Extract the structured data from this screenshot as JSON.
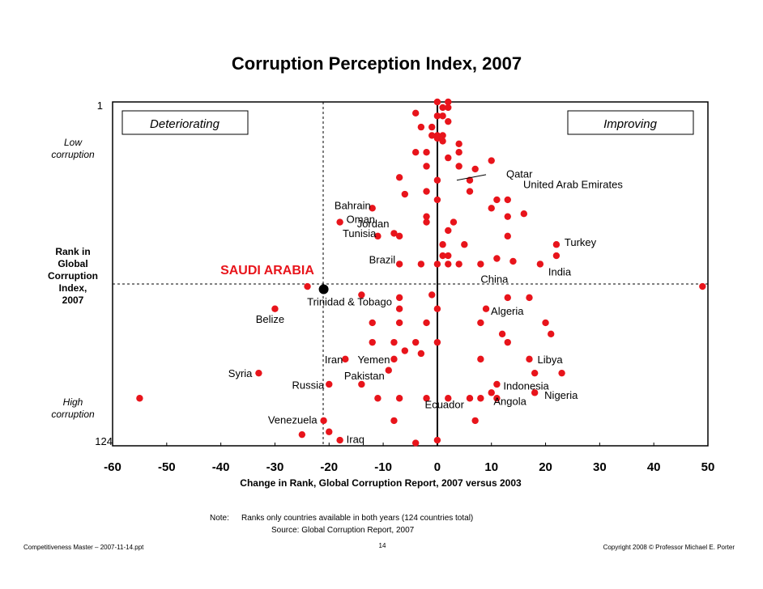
{
  "chart_data": {
    "type": "scatter",
    "title": "Corruption Perception Index, 2007",
    "xlabel": "Change in Rank, Global Corruption Report, 2007 versus 2003",
    "ylabel": "Rank in Global Corruption Index, 2007",
    "xlim": [
      -60,
      50
    ],
    "ylim": [
      124,
      1
    ],
    "x_ticks": [
      "-60",
      "-50",
      "-40",
      "-30",
      "-20",
      "-10",
      "0",
      "10",
      "20",
      "30",
      "40",
      "50"
    ],
    "y_top_label": "1",
    "y_bottom_label": "124",
    "y_top_desc": "Low corruption",
    "y_bottom_desc": "High corruption",
    "left_box": "Deteriorating",
    "right_box": "Improving",
    "highlight": {
      "name": "SAUDI ARABIA",
      "x": -21,
      "y": 68
    },
    "labels": [
      {
        "name": "Qatar",
        "x": 3,
        "y": 28
      },
      {
        "name": "United Arab Emirates",
        "x": 6,
        "y": 31
      },
      {
        "name": "Bahrain",
        "x": -12,
        "y": 39
      },
      {
        "name": "Oman",
        "x": -18,
        "y": 44
      },
      {
        "name": "Jordan",
        "x": -8,
        "y": 45
      },
      {
        "name": "Tunisia",
        "x": -11,
        "y": 49
      },
      {
        "name": "Turkey",
        "x": 22,
        "y": 52
      },
      {
        "name": "Brazil",
        "x": -7,
        "y": 61
      },
      {
        "name": "China",
        "x": 8,
        "y": 61
      },
      {
        "name": "India",
        "x": 19,
        "y": 61
      },
      {
        "name": "Trinidad & Tobago",
        "x": -24,
        "y": 68
      },
      {
        "name": "Belize",
        "x": -30,
        "y": 76
      },
      {
        "name": "Algeria",
        "x": 9,
        "y": 76
      },
      {
        "name": "Iran",
        "x": -17,
        "y": 93
      },
      {
        "name": "Yemen",
        "x": -8,
        "y": 93
      },
      {
        "name": "Libya",
        "x": 17,
        "y": 93
      },
      {
        "name": "Syria",
        "x": -33,
        "y": 98
      },
      {
        "name": "Pakistan",
        "x": -9,
        "y": 98
      },
      {
        "name": "Russia",
        "x": -20,
        "y": 103
      },
      {
        "name": "Indonesia",
        "x": 11,
        "y": 103
      },
      {
        "name": "Nigeria",
        "x": 18,
        "y": 106
      },
      {
        "name": "Angola",
        "x": 8,
        "y": 107
      },
      {
        "name": "Ecuador",
        "x": -2,
        "y": 107
      },
      {
        "name": "Venezuela",
        "x": -21,
        "y": 116
      },
      {
        "name": "Iraq",
        "x": -18,
        "y": 123
      }
    ],
    "points": [
      [
        -4,
        5
      ],
      [
        0,
        1
      ],
      [
        2,
        1
      ],
      [
        1,
        3
      ],
      [
        2,
        3
      ],
      [
        0,
        6
      ],
      [
        1,
        6
      ],
      [
        -3,
        10
      ],
      [
        -1,
        10
      ],
      [
        2,
        8
      ],
      [
        -1,
        13
      ],
      [
        0,
        13
      ],
      [
        1,
        13
      ],
      [
        0,
        14
      ],
      [
        1,
        15
      ],
      [
        4,
        16
      ],
      [
        -4,
        19
      ],
      [
        -2,
        19
      ],
      [
        4,
        19
      ],
      [
        2,
        21
      ],
      [
        -2,
        24
      ],
      [
        4,
        24
      ],
      [
        7,
        25
      ],
      [
        10,
        22
      ],
      [
        -7,
        28
      ],
      [
        0,
        29
      ],
      [
        6,
        29
      ],
      [
        -6,
        34
      ],
      [
        -2,
        33
      ],
      [
        6,
        33
      ],
      [
        0,
        36
      ],
      [
        11,
        36
      ],
      [
        13,
        36
      ],
      [
        -12,
        39
      ],
      [
        10,
        39
      ],
      [
        -2,
        42
      ],
      [
        13,
        42
      ],
      [
        16,
        41
      ],
      [
        -2,
        44
      ],
      [
        3,
        44
      ],
      [
        -18,
        44
      ],
      [
        -8,
        48
      ],
      [
        -7,
        49
      ],
      [
        -11,
        49
      ],
      [
        2,
        47
      ],
      [
        13,
        49
      ],
      [
        1,
        52
      ],
      [
        5,
        52
      ],
      [
        22,
        52
      ],
      [
        1,
        56
      ],
      [
        2,
        56
      ],
      [
        22,
        56
      ],
      [
        -7,
        59
      ],
      [
        -3,
        59
      ],
      [
        0,
        59
      ],
      [
        2,
        59
      ],
      [
        4,
        59
      ],
      [
        8,
        59
      ],
      [
        11,
        57
      ],
      [
        14,
        58
      ],
      [
        19,
        59
      ],
      [
        -24,
        67
      ],
      [
        49,
        67
      ],
      [
        -14,
        70
      ],
      [
        -1,
        70
      ],
      [
        13,
        71
      ],
      [
        17,
        71
      ],
      [
        -7,
        71
      ],
      [
        -7,
        75
      ],
      [
        0,
        75
      ],
      [
        9,
        75
      ],
      [
        -30,
        75
      ],
      [
        -12,
        80
      ],
      [
        -7,
        80
      ],
      [
        -2,
        80
      ],
      [
        8,
        80
      ],
      [
        20,
        80
      ],
      [
        12,
        84
      ],
      [
        21,
        84
      ],
      [
        -12,
        87
      ],
      [
        -8,
        87
      ],
      [
        -4,
        87
      ],
      [
        0,
        87
      ],
      [
        13,
        87
      ],
      [
        -6,
        90
      ],
      [
        -3,
        91
      ],
      [
        -17,
        93
      ],
      [
        -8,
        93
      ],
      [
        8,
        93
      ],
      [
        17,
        93
      ],
      [
        -9,
        97
      ],
      [
        18,
        98
      ],
      [
        23,
        98
      ],
      [
        -33,
        98
      ],
      [
        -20,
        102
      ],
      [
        -14,
        102
      ],
      [
        11,
        102
      ],
      [
        10,
        105
      ],
      [
        18,
        105
      ],
      [
        -55,
        107
      ],
      [
        -11,
        107
      ],
      [
        -7,
        107
      ],
      [
        -2,
        107
      ],
      [
        2,
        107
      ],
      [
        6,
        107
      ],
      [
        8,
        107
      ],
      [
        11,
        107
      ],
      [
        -21,
        115
      ],
      [
        7,
        115
      ],
      [
        -8,
        115
      ],
      [
        -20,
        119
      ],
      [
        -25,
        120
      ],
      [
        -18,
        122
      ],
      [
        0,
        122
      ],
      [
        -4,
        123
      ]
    ]
  },
  "footer": {
    "note_label": "Note:",
    "note_text": "Ranks only countries available in both years (124 countries total)",
    "source": "Source:  Global Corruption Report, 2007",
    "left": "Competitiveness Master – 2007-11-14.ppt",
    "page": "14",
    "right": "Copyright 2008 © Professor Michael E. Porter"
  },
  "colors": {
    "dot": "#e8141b",
    "highlight": "#000000",
    "saudi_label": "#e8141b"
  }
}
